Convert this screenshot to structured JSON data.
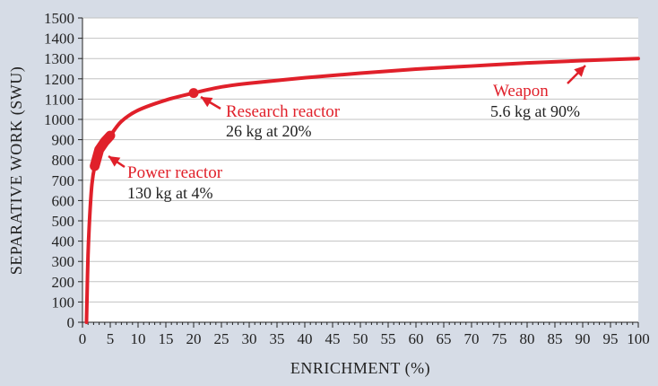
{
  "chart_data": {
    "type": "line",
    "xlabel": "ENRICHMENT (%)",
    "ylabel": "SEPARATIVE WORK (SWU)",
    "xlim": [
      0,
      100
    ],
    "ylim": [
      0,
      1500
    ],
    "x_ticks": [
      0,
      5,
      10,
      15,
      20,
      25,
      30,
      35,
      40,
      45,
      50,
      55,
      60,
      65,
      70,
      75,
      80,
      85,
      90,
      95,
      100
    ],
    "y_ticks": [
      0,
      100,
      200,
      300,
      400,
      500,
      600,
      700,
      800,
      900,
      1000,
      1100,
      1200,
      1300,
      1400,
      1500
    ],
    "grid": "horizontal",
    "line_color": "#e0202a",
    "series": [
      {
        "x": [
          0.72,
          0.8,
          1.0,
          1.3,
          1.7,
          2.2,
          3,
          4,
          5,
          7,
          10,
          15,
          20,
          25,
          30,
          40,
          50,
          60,
          70,
          80,
          90,
          100
        ],
        "values": [
          0,
          100,
          330,
          520,
          680,
          770,
          850,
          890,
          920,
          990,
          1045,
          1095,
          1130,
          1160,
          1178,
          1205,
          1228,
          1248,
          1263,
          1278,
          1290,
          1300
        ]
      }
    ],
    "thick_segment": {
      "x_from": 2,
      "x_to": 5
    },
    "points": [
      {
        "x": 20,
        "y": 1130
      }
    ],
    "annotations": [
      {
        "label": "Power reactor",
        "detail": "130 kg at 4%",
        "x": 4,
        "y": 880
      },
      {
        "label": "Research reactor",
        "detail": "26 kg at 20%",
        "x": 20,
        "y": 1130
      },
      {
        "label": "Weapon",
        "detail": "5.6 kg at 90%",
        "x": 90,
        "y": 1290
      }
    ]
  }
}
